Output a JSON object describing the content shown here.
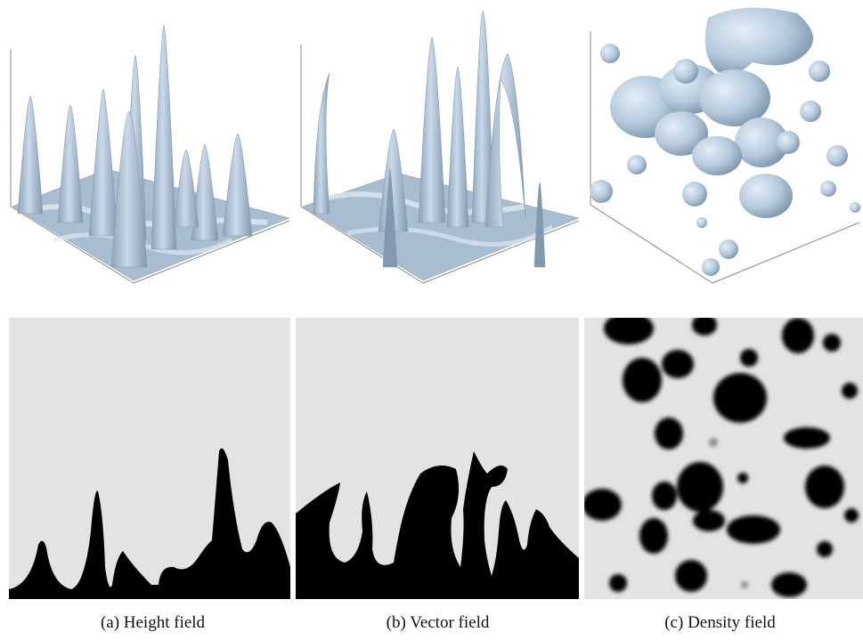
{
  "figure": {
    "captions": [
      {
        "label": "(a) Height field"
      },
      {
        "label": "(b) Vector field"
      },
      {
        "label": "(c) Density field"
      }
    ],
    "surface_color": "#b9cde0",
    "surface_shade": "#7f96ad",
    "slice_background": "#e3e3e3",
    "slice_foreground": "#000000"
  }
}
